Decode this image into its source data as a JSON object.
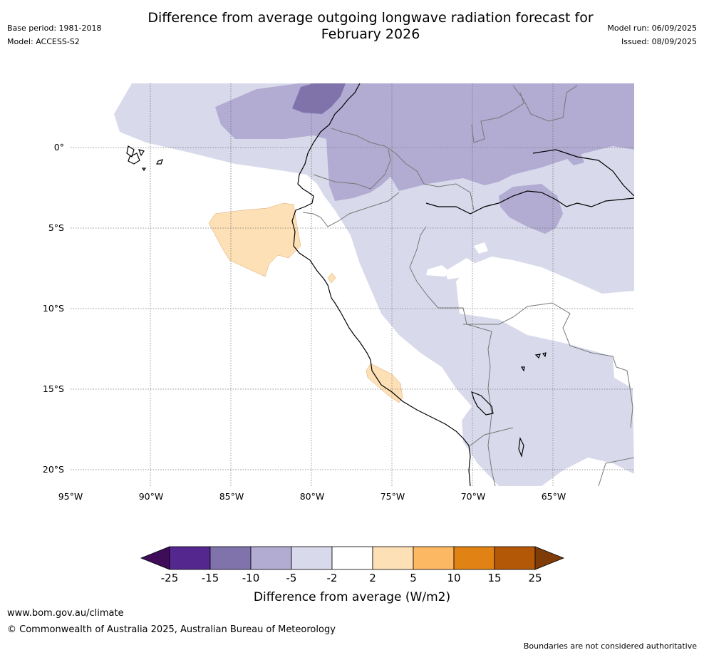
{
  "header": {
    "title_line1": "Difference from average outgoing longwave radiation forecast for",
    "title_line2": "February 2026",
    "base_period": "Base period: 1981-2018",
    "model": "Model: ACCESS-S2",
    "model_run": "Model run: 06/09/2025",
    "issued": "Issued: 08/09/2025"
  },
  "map": {
    "lon_labels": [
      "95°W",
      "90°W",
      "85°W",
      "80°W",
      "75°W",
      "70°W",
      "65°W"
    ],
    "lat_labels": [
      "0°",
      "5°S",
      "10°S",
      "15°S",
      "20°S"
    ],
    "gridlines": true
  },
  "colorbar": {
    "ticks": [
      "-25",
      "-15",
      "-10",
      "-5",
      "-2",
      "2",
      "5",
      "10",
      "15",
      "25"
    ],
    "colors": [
      "#3f0c59",
      "#54278f",
      "#8073ac",
      "#b2abd2",
      "#d8daeb",
      "#ffffff",
      "#fee0b6",
      "#fdb863",
      "#e08214",
      "#b35806",
      "#7f3b08"
    ],
    "label": "Difference from average (W/m2)"
  },
  "footer": {
    "url": "www.bom.gov.au/climate",
    "copyright": "© Commonwealth of Australia 2025, Australian Bureau of Meteorology",
    "disclaimer": "Boundaries are not considered authoritative"
  }
}
